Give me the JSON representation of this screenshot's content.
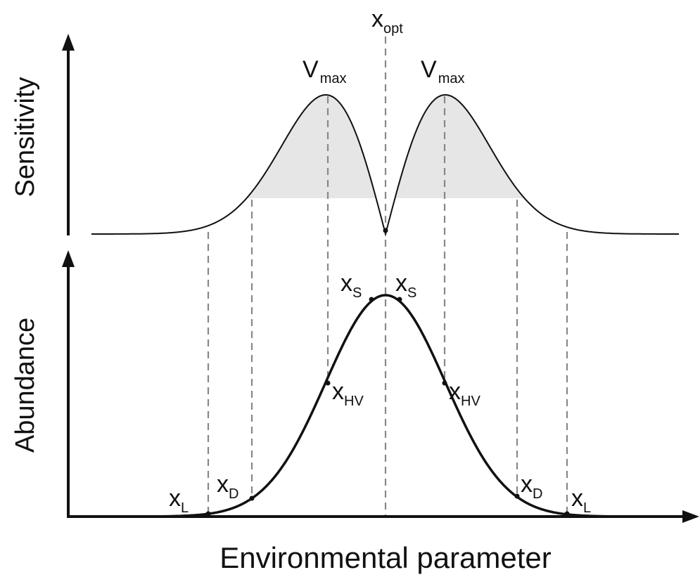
{
  "axes": {
    "top_y_label": "Sensitivity",
    "bottom_y_label": "Abundance",
    "x_label": "Environmental parameter"
  },
  "labels": [
    {
      "main": "x",
      "sub": "opt"
    },
    {
      "main": "V",
      "sub": "max"
    },
    {
      "main": "V",
      "sub": "max"
    },
    {
      "main": "x",
      "sub": "S"
    },
    {
      "main": "x",
      "sub": "S"
    },
    {
      "main": "x",
      "sub": "HV"
    },
    {
      "main": "x",
      "sub": "HV"
    },
    {
      "main": "x",
      "sub": "D"
    },
    {
      "main": "x",
      "sub": "D"
    },
    {
      "main": "x",
      "sub": "L"
    },
    {
      "main": "x",
      "sub": "L"
    }
  ]
}
